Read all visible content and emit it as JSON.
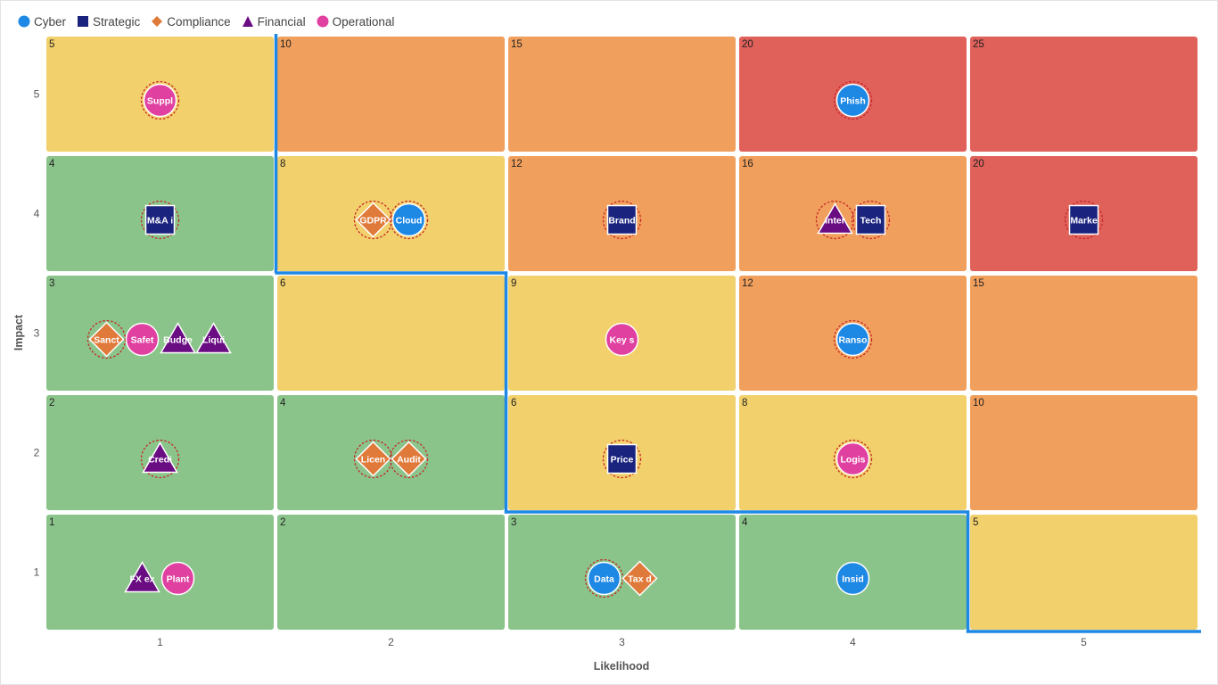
{
  "legend": [
    {
      "name": "Cyber",
      "shape": "circle",
      "color": "#1e88e5"
    },
    {
      "name": "Strategic",
      "shape": "square",
      "color": "#1a237e"
    },
    {
      "name": "Compliance",
      "shape": "diamond",
      "color": "#e07a3a"
    },
    {
      "name": "Financial",
      "shape": "triangle",
      "color": "#6a0d83"
    },
    {
      "name": "Operational",
      "shape": "circle",
      "color": "#e040a0"
    }
  ],
  "chart_data": {
    "type": "heatmap",
    "xlabel": "Likelihood",
    "ylabel": "Impact",
    "x_ticks": [
      "1",
      "2",
      "3",
      "4",
      "5"
    ],
    "y_ticks": [
      "1",
      "2",
      "3",
      "4",
      "5"
    ],
    "grid_colors": {
      "low": "#8bc48a",
      "medium": "#f2d06b",
      "high": "#f19f5c",
      "critical": "#e0605a"
    },
    "cells": [
      {
        "impact": 5,
        "likelihood": 1,
        "score": "5",
        "level": "medium"
      },
      {
        "impact": 5,
        "likelihood": 2,
        "score": "10",
        "level": "high"
      },
      {
        "impact": 5,
        "likelihood": 3,
        "score": "15",
        "level": "high"
      },
      {
        "impact": 5,
        "likelihood": 4,
        "score": "20",
        "level": "critical"
      },
      {
        "impact": 5,
        "likelihood": 5,
        "score": "25",
        "level": "critical"
      },
      {
        "impact": 4,
        "likelihood": 1,
        "score": "4",
        "level": "low"
      },
      {
        "impact": 4,
        "likelihood": 2,
        "score": "8",
        "level": "medium"
      },
      {
        "impact": 4,
        "likelihood": 3,
        "score": "12",
        "level": "high"
      },
      {
        "impact": 4,
        "likelihood": 4,
        "score": "16",
        "level": "high"
      },
      {
        "impact": 4,
        "likelihood": 5,
        "score": "20",
        "level": "critical"
      },
      {
        "impact": 3,
        "likelihood": 1,
        "score": "3",
        "level": "low"
      },
      {
        "impact": 3,
        "likelihood": 2,
        "score": "6",
        "level": "medium"
      },
      {
        "impact": 3,
        "likelihood": 3,
        "score": "9",
        "level": "medium"
      },
      {
        "impact": 3,
        "likelihood": 4,
        "score": "12",
        "level": "high"
      },
      {
        "impact": 3,
        "likelihood": 5,
        "score": "15",
        "level": "high"
      },
      {
        "impact": 2,
        "likelihood": 1,
        "score": "2",
        "level": "low"
      },
      {
        "impact": 2,
        "likelihood": 2,
        "score": "4",
        "level": "low"
      },
      {
        "impact": 2,
        "likelihood": 3,
        "score": "6",
        "level": "medium"
      },
      {
        "impact": 2,
        "likelihood": 4,
        "score": "8",
        "level": "medium"
      },
      {
        "impact": 2,
        "likelihood": 5,
        "score": "10",
        "level": "high"
      },
      {
        "impact": 1,
        "likelihood": 1,
        "score": "1",
        "level": "low"
      },
      {
        "impact": 1,
        "likelihood": 2,
        "score": "2",
        "level": "low"
      },
      {
        "impact": 1,
        "likelihood": 3,
        "score": "3",
        "level": "low"
      },
      {
        "impact": 1,
        "likelihood": 4,
        "score": "4",
        "level": "low"
      },
      {
        "impact": 1,
        "likelihood": 5,
        "score": "5",
        "level": "medium"
      }
    ],
    "risks": [
      {
        "label": "Suppl",
        "category": "Operational",
        "likelihood": 1,
        "impact": 5,
        "ring": true
      },
      {
        "label": "Phish",
        "category": "Cyber",
        "likelihood": 4,
        "impact": 5,
        "ring": true
      },
      {
        "label": "M&A i",
        "category": "Strategic",
        "likelihood": 1,
        "impact": 4,
        "ring": true
      },
      {
        "label": "GDPR",
        "category": "Compliance",
        "likelihood": 2,
        "impact": 4,
        "ring": true
      },
      {
        "label": "Cloud",
        "category": "Cyber",
        "likelihood": 2,
        "impact": 4,
        "ring": true
      },
      {
        "label": "Brand",
        "category": "Strategic",
        "likelihood": 3,
        "impact": 4,
        "ring": true
      },
      {
        "label": "Inter",
        "category": "Financial",
        "likelihood": 4,
        "impact": 4,
        "ring": true
      },
      {
        "label": "Tech",
        "category": "Strategic",
        "likelihood": 4,
        "impact": 4,
        "ring": true
      },
      {
        "label": "Marke",
        "category": "Strategic",
        "likelihood": 5,
        "impact": 4,
        "ring": true
      },
      {
        "label": "Sanct",
        "category": "Compliance",
        "likelihood": 1,
        "impact": 3,
        "ring": true
      },
      {
        "label": "Safet",
        "category": "Operational",
        "likelihood": 1,
        "impact": 3,
        "ring": false
      },
      {
        "label": "Budge",
        "category": "Financial",
        "likelihood": 1,
        "impact": 3,
        "ring": false
      },
      {
        "label": "Liqui",
        "category": "Financial",
        "likelihood": 1,
        "impact": 3,
        "ring": false
      },
      {
        "label": "Key s",
        "category": "Operational",
        "likelihood": 3,
        "impact": 3,
        "ring": false
      },
      {
        "label": "Ranso",
        "category": "Cyber",
        "likelihood": 4,
        "impact": 3,
        "ring": true
      },
      {
        "label": "Credi",
        "category": "Financial",
        "likelihood": 1,
        "impact": 2,
        "ring": true
      },
      {
        "label": "Licen",
        "category": "Compliance",
        "likelihood": 2,
        "impact": 2,
        "ring": true
      },
      {
        "label": "Audit",
        "category": "Compliance",
        "likelihood": 2,
        "impact": 2,
        "ring": true
      },
      {
        "label": "Price",
        "category": "Strategic",
        "likelihood": 3,
        "impact": 2,
        "ring": true
      },
      {
        "label": "Logis",
        "category": "Operational",
        "likelihood": 4,
        "impact": 2,
        "ring": true
      },
      {
        "label": "FX ex",
        "category": "Financial",
        "likelihood": 1,
        "impact": 1,
        "ring": false
      },
      {
        "label": "Plant",
        "category": "Operational",
        "likelihood": 1,
        "impact": 1,
        "ring": false
      },
      {
        "label": "Data",
        "category": "Cyber",
        "likelihood": 3,
        "impact": 1,
        "ring": true
      },
      {
        "label": "Tax d",
        "category": "Compliance",
        "likelihood": 3,
        "impact": 1,
        "ring": false
      },
      {
        "label": "Insid",
        "category": "Cyber",
        "likelihood": 4,
        "impact": 1,
        "ring": false
      }
    ],
    "appetite_line": {
      "color": "#1e88e5",
      "boundary_max_impact_by_likelihood": [
        5,
        4,
        2,
        2,
        1
      ]
    }
  }
}
